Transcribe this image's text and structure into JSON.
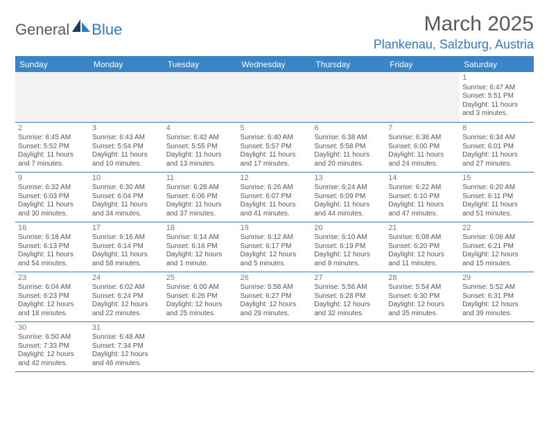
{
  "brand": {
    "part1": "General",
    "part2": "Blue"
  },
  "title": "March 2025",
  "location": "Plankenau, Salzburg, Austria",
  "colors": {
    "header_bg": "#3a85c7",
    "accent": "#2f7bbf",
    "text_muted": "#59595b",
    "cell_text": "#555555",
    "empty_bg": "#f2f2f2"
  },
  "days_of_week": [
    "Sunday",
    "Monday",
    "Tuesday",
    "Wednesday",
    "Thursday",
    "Friday",
    "Saturday"
  ],
  "weeks": [
    [
      null,
      null,
      null,
      null,
      null,
      null,
      {
        "n": "1",
        "sunrise": "Sunrise: 6:47 AM",
        "sunset": "Sunset: 5:51 PM",
        "day1": "Daylight: 11 hours",
        "day2": "and 3 minutes."
      }
    ],
    [
      {
        "n": "2",
        "sunrise": "Sunrise: 6:45 AM",
        "sunset": "Sunset: 5:52 PM",
        "day1": "Daylight: 11 hours",
        "day2": "and 7 minutes."
      },
      {
        "n": "3",
        "sunrise": "Sunrise: 6:43 AM",
        "sunset": "Sunset: 5:54 PM",
        "day1": "Daylight: 11 hours",
        "day2": "and 10 minutes."
      },
      {
        "n": "4",
        "sunrise": "Sunrise: 6:42 AM",
        "sunset": "Sunset: 5:55 PM",
        "day1": "Daylight: 11 hours",
        "day2": "and 13 minutes."
      },
      {
        "n": "5",
        "sunrise": "Sunrise: 6:40 AM",
        "sunset": "Sunset: 5:57 PM",
        "day1": "Daylight: 11 hours",
        "day2": "and 17 minutes."
      },
      {
        "n": "6",
        "sunrise": "Sunrise: 6:38 AM",
        "sunset": "Sunset: 5:58 PM",
        "day1": "Daylight: 11 hours",
        "day2": "and 20 minutes."
      },
      {
        "n": "7",
        "sunrise": "Sunrise: 6:36 AM",
        "sunset": "Sunset: 6:00 PM",
        "day1": "Daylight: 11 hours",
        "day2": "and 24 minutes."
      },
      {
        "n": "8",
        "sunrise": "Sunrise: 6:34 AM",
        "sunset": "Sunset: 6:01 PM",
        "day1": "Daylight: 11 hours",
        "day2": "and 27 minutes."
      }
    ],
    [
      {
        "n": "9",
        "sunrise": "Sunrise: 6:32 AM",
        "sunset": "Sunset: 6:03 PM",
        "day1": "Daylight: 11 hours",
        "day2": "and 30 minutes."
      },
      {
        "n": "10",
        "sunrise": "Sunrise: 6:30 AM",
        "sunset": "Sunset: 6:04 PM",
        "day1": "Daylight: 11 hours",
        "day2": "and 34 minutes."
      },
      {
        "n": "11",
        "sunrise": "Sunrise: 6:28 AM",
        "sunset": "Sunset: 6:06 PM",
        "day1": "Daylight: 11 hours",
        "day2": "and 37 minutes."
      },
      {
        "n": "12",
        "sunrise": "Sunrise: 6:26 AM",
        "sunset": "Sunset: 6:07 PM",
        "day1": "Daylight: 11 hours",
        "day2": "and 41 minutes."
      },
      {
        "n": "13",
        "sunrise": "Sunrise: 6:24 AM",
        "sunset": "Sunset: 6:09 PM",
        "day1": "Daylight: 11 hours",
        "day2": "and 44 minutes."
      },
      {
        "n": "14",
        "sunrise": "Sunrise: 6:22 AM",
        "sunset": "Sunset: 6:10 PM",
        "day1": "Daylight: 11 hours",
        "day2": "and 47 minutes."
      },
      {
        "n": "15",
        "sunrise": "Sunrise: 6:20 AM",
        "sunset": "Sunset: 6:11 PM",
        "day1": "Daylight: 11 hours",
        "day2": "and 51 minutes."
      }
    ],
    [
      {
        "n": "16",
        "sunrise": "Sunrise: 6:18 AM",
        "sunset": "Sunset: 6:13 PM",
        "day1": "Daylight: 11 hours",
        "day2": "and 54 minutes."
      },
      {
        "n": "17",
        "sunrise": "Sunrise: 6:16 AM",
        "sunset": "Sunset: 6:14 PM",
        "day1": "Daylight: 11 hours",
        "day2": "and 58 minutes."
      },
      {
        "n": "18",
        "sunrise": "Sunrise: 6:14 AM",
        "sunset": "Sunset: 6:16 PM",
        "day1": "Daylight: 12 hours",
        "day2": "and 1 minute."
      },
      {
        "n": "19",
        "sunrise": "Sunrise: 6:12 AM",
        "sunset": "Sunset: 6:17 PM",
        "day1": "Daylight: 12 hours",
        "day2": "and 5 minutes."
      },
      {
        "n": "20",
        "sunrise": "Sunrise: 6:10 AM",
        "sunset": "Sunset: 6:19 PM",
        "day1": "Daylight: 12 hours",
        "day2": "and 8 minutes."
      },
      {
        "n": "21",
        "sunrise": "Sunrise: 6:08 AM",
        "sunset": "Sunset: 6:20 PM",
        "day1": "Daylight: 12 hours",
        "day2": "and 11 minutes."
      },
      {
        "n": "22",
        "sunrise": "Sunrise: 6:06 AM",
        "sunset": "Sunset: 6:21 PM",
        "day1": "Daylight: 12 hours",
        "day2": "and 15 minutes."
      }
    ],
    [
      {
        "n": "23",
        "sunrise": "Sunrise: 6:04 AM",
        "sunset": "Sunset: 6:23 PM",
        "day1": "Daylight: 12 hours",
        "day2": "and 18 minutes."
      },
      {
        "n": "24",
        "sunrise": "Sunrise: 6:02 AM",
        "sunset": "Sunset: 6:24 PM",
        "day1": "Daylight: 12 hours",
        "day2": "and 22 minutes."
      },
      {
        "n": "25",
        "sunrise": "Sunrise: 6:00 AM",
        "sunset": "Sunset: 6:26 PM",
        "day1": "Daylight: 12 hours",
        "day2": "and 25 minutes."
      },
      {
        "n": "26",
        "sunrise": "Sunrise: 5:58 AM",
        "sunset": "Sunset: 6:27 PM",
        "day1": "Daylight: 12 hours",
        "day2": "and 29 minutes."
      },
      {
        "n": "27",
        "sunrise": "Sunrise: 5:56 AM",
        "sunset": "Sunset: 6:28 PM",
        "day1": "Daylight: 12 hours",
        "day2": "and 32 minutes."
      },
      {
        "n": "28",
        "sunrise": "Sunrise: 5:54 AM",
        "sunset": "Sunset: 6:30 PM",
        "day1": "Daylight: 12 hours",
        "day2": "and 35 minutes."
      },
      {
        "n": "29",
        "sunrise": "Sunrise: 5:52 AM",
        "sunset": "Sunset: 6:31 PM",
        "day1": "Daylight: 12 hours",
        "day2": "and 39 minutes."
      }
    ],
    [
      {
        "n": "30",
        "sunrise": "Sunrise: 6:50 AM",
        "sunset": "Sunset: 7:33 PM",
        "day1": "Daylight: 12 hours",
        "day2": "and 42 minutes."
      },
      {
        "n": "31",
        "sunrise": "Sunrise: 6:48 AM",
        "sunset": "Sunset: 7:34 PM",
        "day1": "Daylight: 12 hours",
        "day2": "and 46 minutes."
      },
      null,
      null,
      null,
      null,
      null
    ]
  ]
}
